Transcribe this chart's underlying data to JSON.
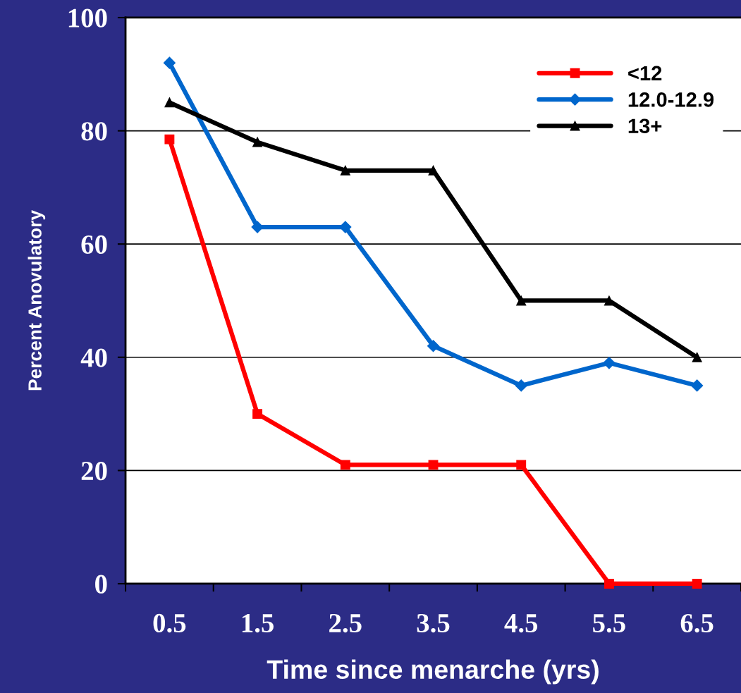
{
  "chart_data": {
    "type": "line",
    "xlabel": "Time since menarche (yrs)",
    "ylabel": "Percent Anovulatory",
    "categories": [
      "0.5",
      "1.5",
      "2.5",
      "3.5",
      "4.5",
      "5.5",
      "6.5"
    ],
    "series": [
      {
        "name": "<12",
        "color": "#ff0000",
        "marker": "square",
        "values": [
          78.5,
          30,
          21,
          21,
          21,
          0,
          0
        ]
      },
      {
        "name": "12.0-12.9",
        "color": "#0066cc",
        "marker": "diamond",
        "values": [
          92,
          63,
          63,
          42,
          35,
          39,
          35
        ]
      },
      {
        "name": "13+",
        "color": "#000000",
        "marker": "triangle",
        "values": [
          85,
          78,
          73,
          73,
          50,
          50,
          40
        ]
      }
    ],
    "ylim": [
      0,
      100
    ],
    "yticks": [
      0,
      20,
      40,
      60,
      80,
      100
    ],
    "grid": "y",
    "legend": "top right",
    "line_style": "solid"
  }
}
